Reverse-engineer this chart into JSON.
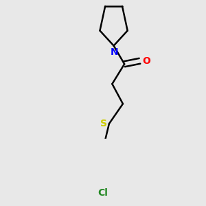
{
  "background_color": "#e8e8e8",
  "bond_color": "#000000",
  "N_color": "#0000ff",
  "O_color": "#ff0000",
  "S_color": "#cccc00",
  "Cl_color": "#228822",
  "line_width": 1.8,
  "font_size": 10,
  "fig_width": 3.0,
  "fig_height": 3.0,
  "dpi": 100,
  "xlim": [
    0.2,
    0.9
  ],
  "ylim": [
    0.05,
    0.95
  ]
}
